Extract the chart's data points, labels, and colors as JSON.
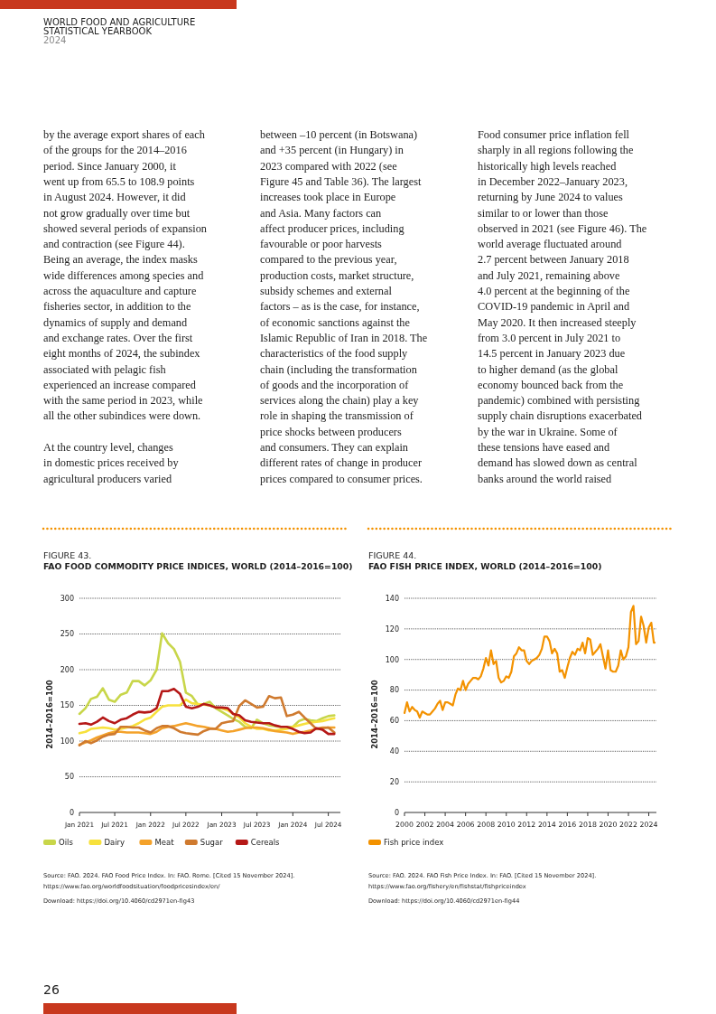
{
  "chart_data": [
    {
      "type": "other",
      "title": "WORLD FOOD AND AGRICULTURE\nSTATISTICAL YEARBOOK",
      "subtitle": "2024",
      "annotations": [
        "by the average export shares of each\nof the groups for the 2014–2016\nperiod. Since January 2000, it\nwent up from 65.5 to 108.9 points\nin August 2024. However, it did\nnot grow gradually over time but\nshowed several periods of expansion\nand contraction (see Figure 44).\nBeing an average, the index masks\nwide differences among species and\nacross the aquaculture and capture\nfisheries sector, in addition to the\ndynamics of supply and demand\nand exchange rates. Over the first\neight months of 2024, the subindex\nassociated with pelagic fish\nexperienced an increase compared\nwith the same period in 2023, while\nall the other subindices were down.",
        "At the country level, changes\nin domestic prices received by\nagricultural producers varied",
        "between –10 percent (in Botswana)\nand +35 percent (in Hungary) in\n2023 compared with 2022 (see\nFigure 45 and Table 36). The largest\nincreases took place in Europe\nand Asia. Many factors can\naffect producer prices, including\nfavourable or poor harvests\ncompared to the previous year,\nproduction costs, market structure,\nsubsidy schemes and external\nfactors – as is the case, for instance,\nof economic sanctions against the\nIslamic Republic of Iran in 2018. The\ncharacteristics of the food supply\nchain (including the transformation\nof goods and the incorporation of\nservices along the chain) play a key\nrole in shaping the transmission of\nprice shocks between producers\nand consumers. They can explain\ndifferent rates of change in producer\nprices compared to consumer prices.",
        "Food consumer price inflation fell\nsharply in all regions following the\nhistorically high levels reached\nin December 2022–January 2023,\nreturning by June 2024 to values\nsimilar to or lower than those\nobserved in 2021 (see Figure 46). The\nworld average fluctuated around\n2.7 percent between January 2018\nand July 2021, remaining above\n4.0 percent at the beginning of the\nCOVID-19 pandemic in April and\nMay 2020. It then increased steeply\nfrom 3.0 percent in July 2021 to\n14.5 percent in January 2023 due\nto higher demand (as the global\neconomy bounced back from the\npandemic) combined with persisting\nsupply chain disruptions exacerbated\nby the war in Ukraine. Some of\nthese tensions have eased and\ndemand has slowed down as central\nbanks around the world raised",
        "26"
      ]
    },
    {
      "type": "line",
      "subtitle": "FIGURE 43.",
      "title": "FAO FOOD COMMODITY PRICE INDICES, WORLD (2014–2016=100)",
      "ylabel": "2014–2016=100",
      "x": [
        "2021-01",
        "2021-02",
        "2021-03",
        "2021-04",
        "2021-05",
        "2021-06",
        "2021-07",
        "2021-08",
        "2021-09",
        "2021-10",
        "2021-11",
        "2021-12",
        "2022-01",
        "2022-02",
        "2022-03",
        "2022-04",
        "2022-05",
        "2022-06",
        "2022-07",
        "2022-08",
        "2022-09",
        "2022-10",
        "2022-11",
        "2022-12",
        "2023-01",
        "2023-02",
        "2023-03",
        "2023-04",
        "2023-05",
        "2023-06",
        "2023-07",
        "2023-08",
        "2023-09",
        "2023-10",
        "2023-11",
        "2023-12",
        "2024-01",
        "2024-02",
        "2024-03",
        "2024-04",
        "2024-05",
        "2024-06",
        "2024-07",
        "2024-08"
      ],
      "series": [
        {
          "name": "Oils",
          "color": "#c8d64a",
          "values": [
            138,
            146,
            159,
            162,
            174,
            158,
            155,
            165,
            168,
            184,
            184,
            178,
            185,
            200,
            251,
            237,
            229,
            211,
            168,
            163,
            151,
            152,
            155,
            146,
            141,
            136,
            131,
            127,
            120,
            118,
            130,
            125,
            122,
            121,
            120,
            120,
            120,
            128,
            131,
            129,
            128,
            132,
            135,
            136
          ]
        },
        {
          "name": "Dairy",
          "color": "#f7e13c",
          "values": [
            111,
            113,
            117,
            118,
            119,
            118,
            116,
            117,
            119,
            121,
            125,
            130,
            133,
            141,
            148,
            150,
            150,
            150,
            158,
            153,
            152,
            151,
            150,
            147,
            146,
            143,
            138,
            133,
            125,
            120,
            117,
            117,
            115,
            115,
            116,
            117,
            120,
            122,
            124,
            126,
            127,
            128,
            130,
            132
          ]
        },
        {
          "name": "Meat",
          "color": "#f4a22a",
          "values": [
            95,
            98,
            101,
            105,
            108,
            111,
            113,
            113,
            112,
            112,
            112,
            111,
            110,
            113,
            118,
            120,
            121,
            123,
            125,
            123,
            121,
            120,
            118,
            117,
            115,
            113,
            114,
            116,
            118,
            119,
            119,
            118,
            116,
            114,
            113,
            112,
            110,
            112,
            113,
            115,
            117,
            119,
            119,
            119
          ]
        },
        {
          "name": "Sugar",
          "color": "#cf7a2f",
          "values": [
            94,
            100,
            97,
            101,
            106,
            109,
            110,
            120,
            120,
            119,
            119,
            115,
            112,
            118,
            121,
            121,
            118,
            113,
            111,
            110,
            109,
            114,
            117,
            117,
            125,
            127,
            128,
            149,
            157,
            152,
            147,
            148,
            163,
            160,
            161,
            135,
            137,
            141,
            133,
            125,
            117,
            118,
            119,
            112
          ]
        },
        {
          "name": "Cereals",
          "color": "#b51817",
          "values": [
            124,
            125,
            123,
            127,
            133,
            128,
            125,
            130,
            132,
            137,
            141,
            140,
            141,
            146,
            170,
            170,
            173,
            166,
            148,
            146,
            148,
            152,
            150,
            147,
            147,
            146,
            138,
            136,
            129,
            127,
            126,
            125,
            125,
            122,
            120,
            120,
            117,
            113,
            111,
            112,
            118,
            116,
            110,
            110
          ]
        }
      ],
      "xlim": [
        "2021-01",
        "2024-09"
      ],
      "xticks": [
        {
          "value": "2021-01",
          "label": "Jan 2021"
        },
        {
          "value": "2021-07",
          "label": "Jul 2021"
        },
        {
          "value": "2022-01",
          "label": "Jan 2022"
        },
        {
          "value": "2022-07",
          "label": "Jul 2022"
        },
        {
          "value": "2023-01",
          "label": "Jan 2023"
        },
        {
          "value": "2023-07",
          "label": "Jul 2023"
        },
        {
          "value": "2024-01",
          "label": "Jan 2024"
        },
        {
          "value": "2024-07",
          "label": "Jul 2024"
        }
      ],
      "ylim": [
        0,
        300
      ],
      "yticks": [
        0,
        50,
        100,
        150,
        200,
        250,
        300
      ],
      "grid": "y",
      "legend": "bottom",
      "annotations": [
        "Source: FAO. 2024. FAO Food Price Index. In: FAO. Rome. [Cited 15 November 2024].\nhttps://www.fao.org/worldfoodsituation/foodpricesindex/en/",
        "Download: https://doi.org/10.4060/cd2971en-fig43"
      ]
    },
    {
      "type": "line",
      "subtitle": "FIGURE 44.",
      "title": "FAO FISH PRICE INDEX, WORLD (2014–2016=100)",
      "ylabel": "2014–2016=100",
      "series": [
        {
          "name": "Fish price index",
          "color": "#f39200",
          "x": [
            "2000-01",
            "2000-04",
            "2000-07",
            "2000-10",
            "2001-01",
            "2001-04",
            "2001-07",
            "2001-10",
            "2002-01",
            "2002-04",
            "2002-07",
            "2002-10",
            "2003-01",
            "2003-04",
            "2003-07",
            "2003-10",
            "2004-01",
            "2004-04",
            "2004-07",
            "2004-10",
            "2005-01",
            "2005-04",
            "2005-07",
            "2005-10",
            "2006-01",
            "2006-04",
            "2006-07",
            "2006-10",
            "2007-01",
            "2007-04",
            "2007-07",
            "2007-10",
            "2008-01",
            "2008-04",
            "2008-07",
            "2008-10",
            "2009-01",
            "2009-04",
            "2009-07",
            "2009-10",
            "2010-01",
            "2010-04",
            "2010-07",
            "2010-10",
            "2011-01",
            "2011-04",
            "2011-07",
            "2011-10",
            "2012-01",
            "2012-04",
            "2012-07",
            "2012-10",
            "2013-01",
            "2013-04",
            "2013-07",
            "2013-10",
            "2014-01",
            "2014-04",
            "2014-07",
            "2014-10",
            "2015-01",
            "2015-04",
            "2015-07",
            "2015-10",
            "2016-01",
            "2016-04",
            "2016-07",
            "2016-10",
            "2017-01",
            "2017-04",
            "2017-07",
            "2017-10",
            "2018-01",
            "2018-04",
            "2018-07",
            "2018-10",
            "2019-01",
            "2019-04",
            "2019-07",
            "2019-10",
            "2020-01",
            "2020-04",
            "2020-07",
            "2020-10",
            "2021-01",
            "2021-04",
            "2021-07",
            "2021-10",
            "2022-01",
            "2022-04",
            "2022-07",
            "2022-10",
            "2023-01",
            "2023-04",
            "2023-07",
            "2023-10",
            "2024-01",
            "2024-04",
            "2024-07",
            "2024-08"
          ],
          "values": [
            65,
            72,
            66,
            69,
            67,
            66,
            62,
            66,
            65,
            64,
            64,
            66,
            68,
            71,
            73,
            67,
            72,
            72,
            71,
            70,
            77,
            81,
            80,
            86,
            80,
            84,
            86,
            88,
            88,
            87,
            89,
            94,
            101,
            96,
            106,
            97,
            99,
            88,
            85,
            86,
            89,
            88,
            92,
            102,
            104,
            108,
            106,
            106,
            99,
            97,
            99,
            100,
            101,
            103,
            107,
            115,
            115,
            112,
            104,
            107,
            104,
            92,
            93,
            88,
            95,
            101,
            105,
            103,
            107,
            106,
            111,
            104,
            114,
            113,
            103,
            105,
            107,
            110,
            102,
            94,
            106,
            93,
            92,
            92,
            96,
            106,
            100,
            102,
            108,
            131,
            135,
            110,
            112,
            128,
            122,
            111,
            121,
            124,
            111,
            111
          ]
        }
      ],
      "xlim": [
        "2000-01",
        "2024-10"
      ],
      "xticks": [
        {
          "value": "2000",
          "label": "2000"
        },
        {
          "value": "2002",
          "label": "2002"
        },
        {
          "value": "2004",
          "label": "2004"
        },
        {
          "value": "2006",
          "label": "2006"
        },
        {
          "value": "2008",
          "label": "2008"
        },
        {
          "value": "2010",
          "label": "2010"
        },
        {
          "value": "2012",
          "label": "2012"
        },
        {
          "value": "2014",
          "label": "2014"
        },
        {
          "value": "2016",
          "label": "2016"
        },
        {
          "value": "2018",
          "label": "2018"
        },
        {
          "value": "2020",
          "label": "2020"
        },
        {
          "value": "2022",
          "label": "2022"
        },
        {
          "value": "2024",
          "label": "2024"
        }
      ],
      "ylim": [
        0,
        140
      ],
      "yticks": [
        0,
        20,
        40,
        60,
        80,
        100,
        120,
        140
      ],
      "grid": "y",
      "legend": "bottom",
      "annotations": [
        "Source: FAO. 2024. FAO Fish Price Index. In: FAO. [Cited 15 November 2024].\nhttps://www.fao.org/fishery/en/fishstat/fishpriceindex",
        "Download: https://doi.org/10.4060/cd2971en-fig44"
      ]
    }
  ]
}
